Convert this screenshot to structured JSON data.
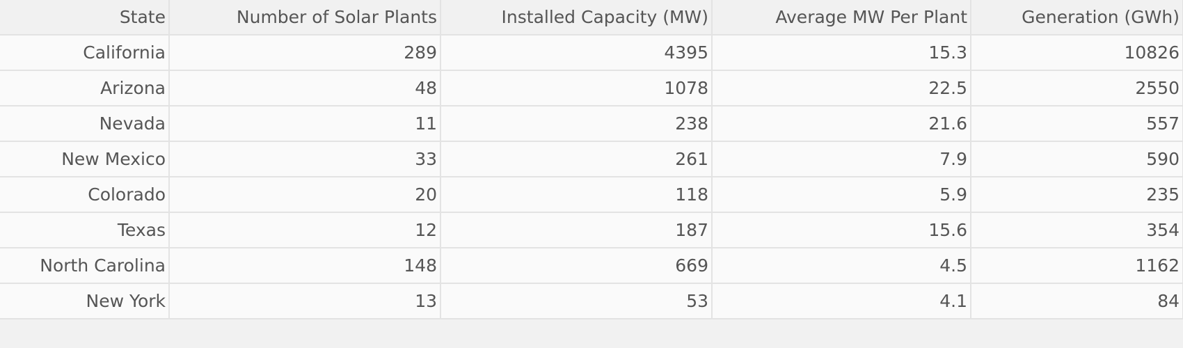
{
  "chart_data": {
    "type": "table",
    "columns": [
      "State",
      "Number of Solar Plants",
      "Installed Capacity (MW)",
      "Average MW Per Plant",
      "Generation (GWh)"
    ],
    "rows": [
      [
        "California",
        "289",
        "4395",
        "15.3",
        "10826"
      ],
      [
        "Arizona",
        "48",
        "1078",
        "22.5",
        "2550"
      ],
      [
        "Nevada",
        "11",
        "238",
        "21.6",
        "557"
      ],
      [
        "New Mexico",
        "33",
        "261",
        "7.9",
        "590"
      ],
      [
        "Colorado",
        "20",
        "118",
        "5.9",
        "235"
      ],
      [
        "Texas",
        "12",
        "187",
        "15.6",
        "354"
      ],
      [
        "North Carolina",
        "148",
        "669",
        "4.5",
        "1162"
      ],
      [
        "New York",
        "13",
        "53",
        "4.1",
        "84"
      ]
    ]
  },
  "colors": {
    "text": "#555555",
    "header_background": "#f1f1f1",
    "row_background": "#fafafa",
    "grid": "#e3e3e3"
  }
}
